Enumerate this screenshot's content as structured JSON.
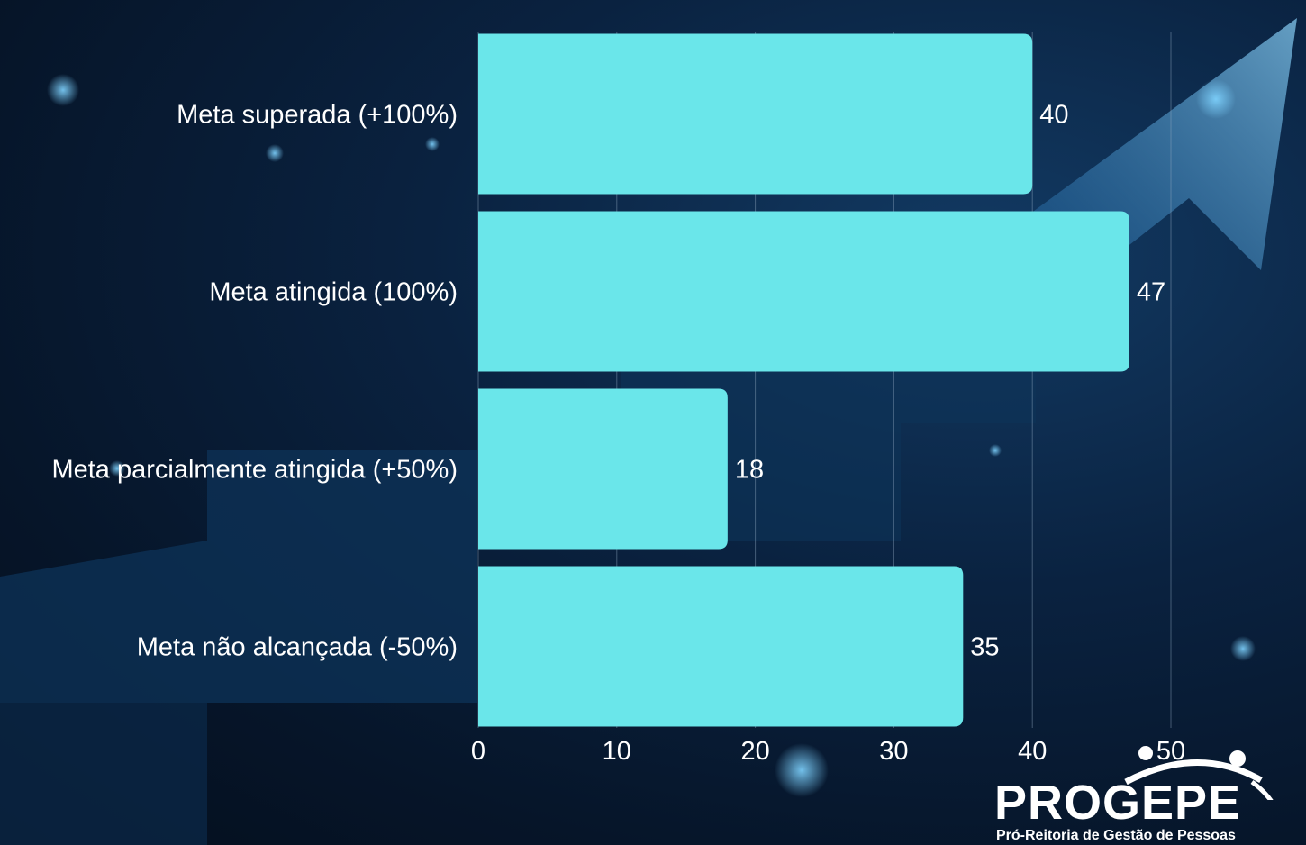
{
  "chart_data": {
    "type": "bar",
    "orientation": "horizontal",
    "categories": [
      "Meta superada (+100%)",
      "Meta atingida (100%)",
      "Meta parcialmente atingida (+50%)",
      "Meta não alcançada (-50%)"
    ],
    "values": [
      40,
      47,
      18,
      35
    ],
    "xlim": [
      0,
      50
    ],
    "x_ticks": [
      "0",
      "10",
      "20",
      "30",
      "40",
      "50"
    ],
    "grid": "vertical",
    "bar_color": "#6ae6ea",
    "title": "",
    "xlabel": "",
    "ylabel": ""
  },
  "branding": {
    "logo_text": "PROGEPE",
    "logo_subtitle": "Pró-Reitoria de Gestão de Pessoas"
  },
  "colors": {
    "background": "#0a2240",
    "bars": "#6ae6ea",
    "text": "#ffffff"
  }
}
